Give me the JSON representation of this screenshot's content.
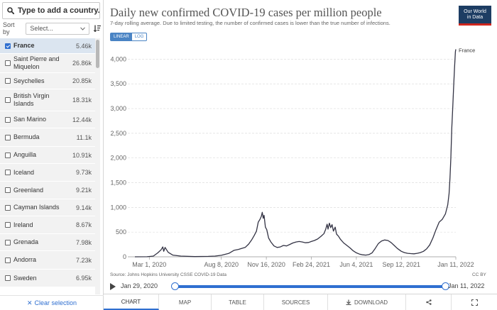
{
  "search": {
    "placeholder": "Type to add a country..."
  },
  "sort": {
    "label": "Sort by",
    "selected": "Select..."
  },
  "countries": [
    {
      "name": "France",
      "value": "5.46k",
      "selected": true
    },
    {
      "name": "Saint Pierre and Miquelon",
      "value": "26.86k",
      "selected": false
    },
    {
      "name": "Seychelles",
      "value": "20.85k",
      "selected": false
    },
    {
      "name": "British Virgin Islands",
      "value": "18.31k",
      "selected": false
    },
    {
      "name": "San Marino",
      "value": "12.44k",
      "selected": false
    },
    {
      "name": "Bermuda",
      "value": "11.1k",
      "selected": false
    },
    {
      "name": "Anguilla",
      "value": "10.91k",
      "selected": false
    },
    {
      "name": "Iceland",
      "value": "9.73k",
      "selected": false
    },
    {
      "name": "Greenland",
      "value": "9.21k",
      "selected": false
    },
    {
      "name": "Cayman Islands",
      "value": "9.14k",
      "selected": false
    },
    {
      "name": "Ireland",
      "value": "8.67k",
      "selected": false
    },
    {
      "name": "Grenada",
      "value": "7.98k",
      "selected": false
    },
    {
      "name": "Andorra",
      "value": "7.23k",
      "selected": false
    },
    {
      "name": "Sweden",
      "value": "6.95k",
      "selected": false
    }
  ],
  "clear_selection": "Clear selection",
  "logo": {
    "line1": "Our World",
    "line2": "in Data"
  },
  "scale": {
    "linear": "LINEAR",
    "log": "LOG"
  },
  "timeline": {
    "start": "Jan 29, 2020",
    "end": "Jan 11, 2022"
  },
  "tabs": {
    "chart": "CHART",
    "map": "MAP",
    "table": "TABLE",
    "sources": "SOURCES",
    "download": "DOWNLOAD"
  },
  "colors": {
    "line": "#333344",
    "accent": "#2f6fd0",
    "grid": "#dddddd",
    "logo_bg": "#1d3d63",
    "logo_red": "#ce261e"
  },
  "chart_data": {
    "type": "line",
    "title": "Daily new confirmed COVID-19 cases per million people",
    "subtitle": "7-day rolling average. Due to limited testing, the number of confirmed cases is lower than the true number of infections.",
    "source": "Source: Johns Hopkins University CSSE COVID-19 Data",
    "license": "CC BY",
    "xlabel": "",
    "ylabel": "",
    "ylim": [
      0,
      4250
    ],
    "xlim": [
      "2020-01-29",
      "2022-01-11"
    ],
    "yticks": [
      0,
      500,
      1000,
      1500,
      2000,
      2500,
      3000,
      3500,
      4000
    ],
    "ytick_labels": [
      "0",
      "500",
      "1,000",
      "1,500",
      "2,000",
      "2,500",
      "3,000",
      "3,500",
      "4,000"
    ],
    "xticks": [
      "2020-03-01",
      "2020-08-08",
      "2020-11-16",
      "2021-02-24",
      "2021-06-04",
      "2021-09-12",
      "2022-01-11"
    ],
    "xtick_labels": [
      "Mar 1, 2020",
      "Aug 8, 2020",
      "Nov 16, 2020",
      "Feb 24, 2021",
      "Jun 4, 2021",
      "Sep 12, 2021",
      "Jan 11, 2022"
    ],
    "grid": true,
    "series": [
      {
        "name": "France",
        "points": [
          [
            "2020-01-29",
            0
          ],
          [
            "2020-02-25",
            2
          ],
          [
            "2020-03-10",
            15
          ],
          [
            "2020-03-20",
            80
          ],
          [
            "2020-03-27",
            140
          ],
          [
            "2020-03-31",
            200
          ],
          [
            "2020-04-02",
            110
          ],
          [
            "2020-04-05",
            190
          ],
          [
            "2020-04-12",
            90
          ],
          [
            "2020-04-22",
            35
          ],
          [
            "2020-05-10",
            15
          ],
          [
            "2020-06-10",
            5
          ],
          [
            "2020-07-10",
            8
          ],
          [
            "2020-07-25",
            15
          ],
          [
            "2020-08-08",
            30
          ],
          [
            "2020-08-25",
            70
          ],
          [
            "2020-09-05",
            130
          ],
          [
            "2020-09-15",
            150
          ],
          [
            "2020-09-22",
            170
          ],
          [
            "2020-09-30",
            190
          ],
          [
            "2020-10-08",
            260
          ],
          [
            "2020-10-15",
            350
          ],
          [
            "2020-10-20",
            430
          ],
          [
            "2020-10-25",
            520
          ],
          [
            "2020-10-29",
            700
          ],
          [
            "2020-11-02",
            760
          ],
          [
            "2020-11-05",
            820
          ],
          [
            "2020-11-07",
            900
          ],
          [
            "2020-11-09",
            780
          ],
          [
            "2020-11-11",
            840
          ],
          [
            "2020-11-14",
            600
          ],
          [
            "2020-11-17",
            550
          ],
          [
            "2020-11-21",
            380
          ],
          [
            "2020-11-26",
            300
          ],
          [
            "2020-12-03",
            220
          ],
          [
            "2020-12-10",
            190
          ],
          [
            "2020-12-17",
            200
          ],
          [
            "2020-12-24",
            230
          ],
          [
            "2020-12-31",
            220
          ],
          [
            "2021-01-07",
            250
          ],
          [
            "2021-01-14",
            280
          ],
          [
            "2021-01-21",
            300
          ],
          [
            "2021-01-28",
            310
          ],
          [
            "2021-02-04",
            300
          ],
          [
            "2021-02-11",
            285
          ],
          [
            "2021-02-18",
            290
          ],
          [
            "2021-02-24",
            310
          ],
          [
            "2021-03-03",
            330
          ],
          [
            "2021-03-10",
            360
          ],
          [
            "2021-03-17",
            410
          ],
          [
            "2021-03-24",
            470
          ],
          [
            "2021-03-28",
            560
          ],
          [
            "2021-03-31",
            660
          ],
          [
            "2021-04-02",
            560
          ],
          [
            "2021-04-05",
            680
          ],
          [
            "2021-04-08",
            590
          ],
          [
            "2021-04-11",
            650
          ],
          [
            "2021-04-14",
            520
          ],
          [
            "2021-04-18",
            600
          ],
          [
            "2021-04-21",
            460
          ],
          [
            "2021-04-25",
            420
          ],
          [
            "2021-04-30",
            350
          ],
          [
            "2021-05-07",
            280
          ],
          [
            "2021-05-14",
            230
          ],
          [
            "2021-05-21",
            180
          ],
          [
            "2021-05-28",
            120
          ],
          [
            "2021-06-04",
            80
          ],
          [
            "2021-06-11",
            55
          ],
          [
            "2021-06-18",
            40
          ],
          [
            "2021-06-25",
            35
          ],
          [
            "2021-07-02",
            45
          ],
          [
            "2021-07-09",
            80
          ],
          [
            "2021-07-16",
            170
          ],
          [
            "2021-07-23",
            270
          ],
          [
            "2021-07-30",
            320
          ],
          [
            "2021-08-06",
            340
          ],
          [
            "2021-08-13",
            330
          ],
          [
            "2021-08-20",
            290
          ],
          [
            "2021-08-27",
            230
          ],
          [
            "2021-09-03",
            170
          ],
          [
            "2021-09-12",
            110
          ],
          [
            "2021-09-19",
            85
          ],
          [
            "2021-09-26",
            70
          ],
          [
            "2021-10-03",
            65
          ],
          [
            "2021-10-10",
            60
          ],
          [
            "2021-10-17",
            70
          ],
          [
            "2021-10-24",
            85
          ],
          [
            "2021-10-31",
            110
          ],
          [
            "2021-11-07",
            160
          ],
          [
            "2021-11-14",
            240
          ],
          [
            "2021-11-21",
            380
          ],
          [
            "2021-11-28",
            550
          ],
          [
            "2021-12-05",
            700
          ],
          [
            "2021-12-12",
            760
          ],
          [
            "2021-12-19",
            870
          ],
          [
            "2021-12-24",
            1050
          ],
          [
            "2021-12-27",
            1280
          ],
          [
            "2021-12-29",
            1600
          ],
          [
            "2021-12-31",
            2000
          ],
          [
            "2022-01-02",
            2600
          ],
          [
            "2022-01-04",
            3000
          ],
          [
            "2022-01-06",
            3400
          ],
          [
            "2022-01-08",
            3800
          ],
          [
            "2022-01-10",
            4150
          ],
          [
            "2022-01-11",
            4200
          ]
        ]
      }
    ]
  }
}
